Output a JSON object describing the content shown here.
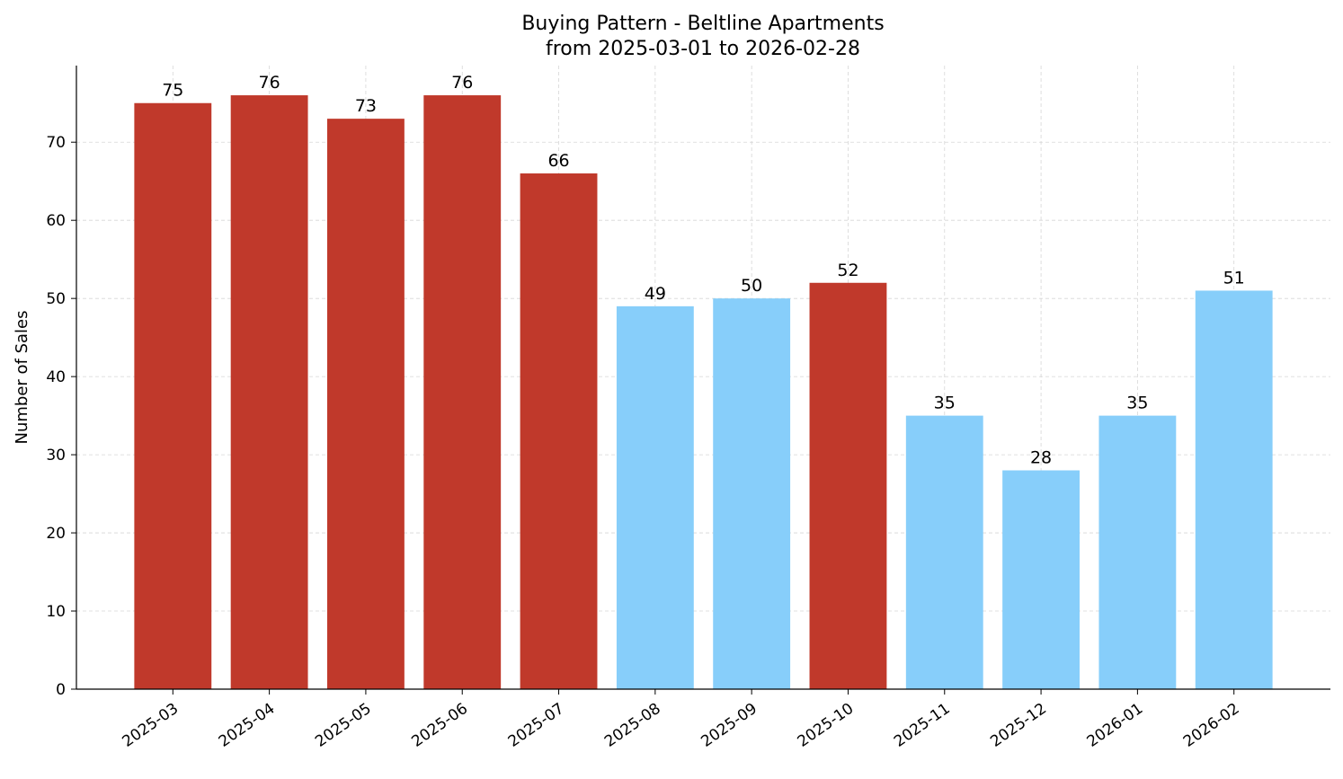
{
  "chart_data": {
    "type": "bar",
    "title": "Buying Pattern - Beltline Apartments",
    "subtitle": "from 2025-03-01 to 2026-02-28",
    "xlabel": "",
    "ylabel": "Number of Sales",
    "categories": [
      "2025-03",
      "2025-04",
      "2025-05",
      "2025-06",
      "2025-07",
      "2025-08",
      "2025-09",
      "2025-10",
      "2025-11",
      "2025-12",
      "2026-01",
      "2026-02"
    ],
    "values": [
      75,
      76,
      73,
      76,
      66,
      49,
      50,
      52,
      35,
      28,
      35,
      51
    ],
    "bar_colors": [
      "#c0392b",
      "#c0392b",
      "#c0392b",
      "#c0392b",
      "#c0392b",
      "#87cefa",
      "#87cefa",
      "#c0392b",
      "#87cefa",
      "#87cefa",
      "#87cefa",
      "#87cefa"
    ],
    "ylim": [
      0,
      79.8
    ],
    "yticks": [
      0,
      10,
      20,
      30,
      40,
      50,
      60,
      70
    ],
    "grid": true,
    "data_labels": true
  }
}
